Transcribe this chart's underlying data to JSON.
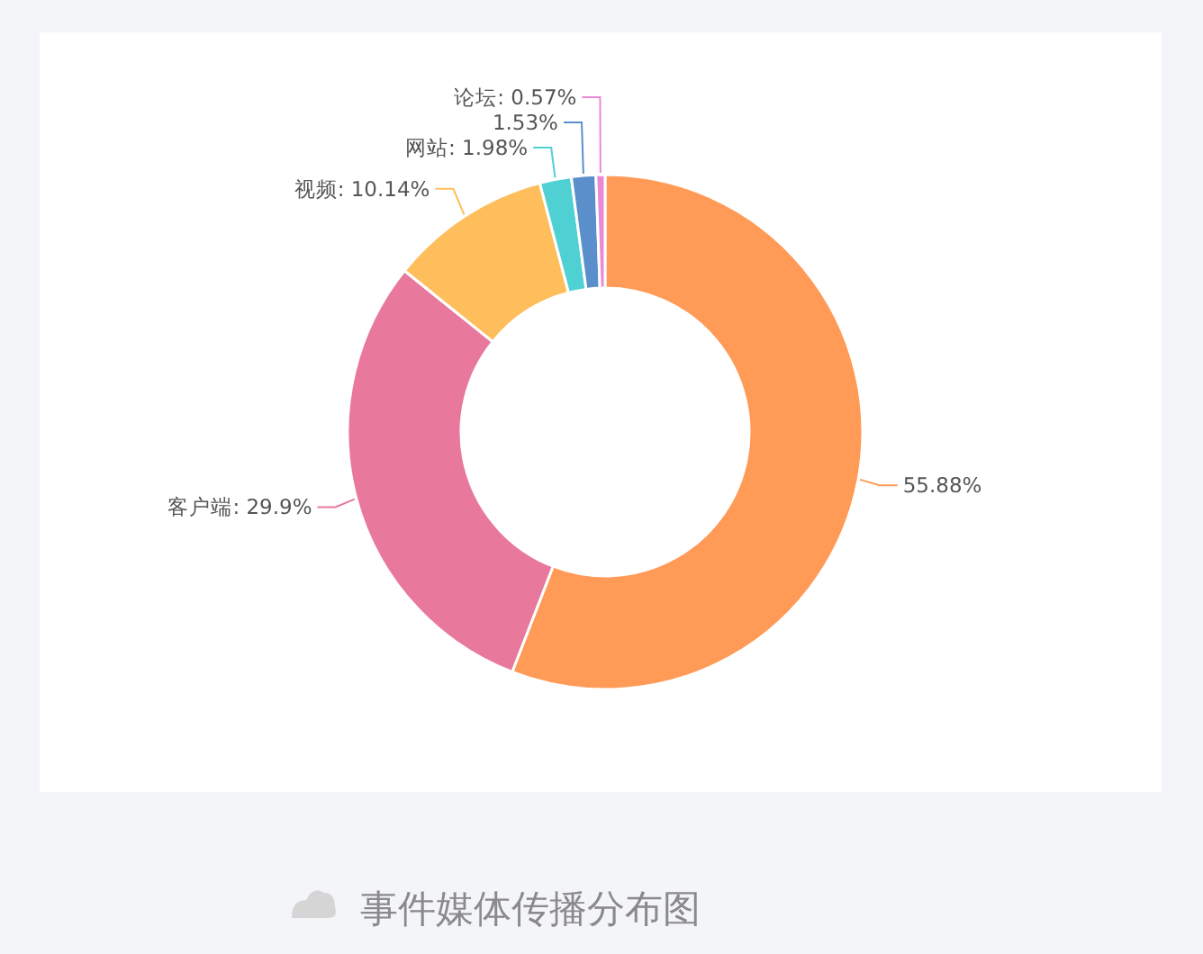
{
  "chart_data": {
    "type": "donut",
    "title": "事件媒体传播分布图",
    "categories": [
      null,
      "客户端",
      "视频",
      "网站",
      null,
      "论坛"
    ],
    "values": [
      55.88,
      29.9,
      10.14,
      1.98,
      1.53,
      0.57
    ],
    "value_labels": [
      "55.88%",
      "29.9%",
      "10.14%",
      "1.98%",
      "1.53%",
      "0.57%"
    ],
    "colors": [
      "#ff9a57",
      "#e8799c",
      "#ffbe5c",
      "#4fd1d4",
      "#5b8fcc",
      "#e88ad6"
    ]
  }
}
